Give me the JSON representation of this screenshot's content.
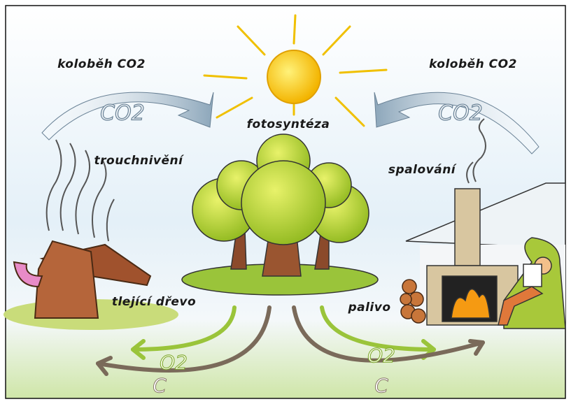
{
  "labels": {
    "cycle_left": "koloběh CO2",
    "cycle_right": "koloběh CO2",
    "co2_left": "CO2",
    "co2_right": "CO2",
    "photosynthesis": "fotosyntéza",
    "decay": "trouchnivění",
    "burning": "spalování",
    "rotting_wood": "tlející dřevo",
    "fuel": "palivo",
    "o2_left": "O2",
    "o2_right": "O2",
    "c_left": "C",
    "c_right": "C"
  }
}
